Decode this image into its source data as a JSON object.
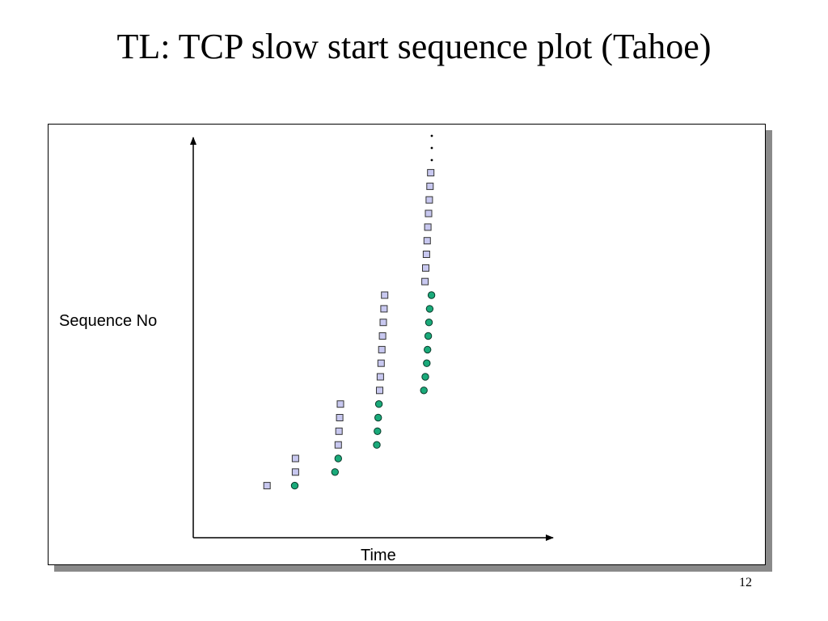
{
  "slide": {
    "title": "TL: TCP slow start sequence plot (Tahoe)",
    "page_number": "12"
  },
  "colors": {
    "segment_fill": "#c8c8f0",
    "segment_stroke": "#333333",
    "ack_fill": "#1aaa7a",
    "ack_stroke": "#0a3a2a",
    "axis": "#000000",
    "shadow": "#8a8a8a"
  },
  "chart_data": {
    "type": "scatter",
    "title": "",
    "xlabel": "Time",
    "ylabel": "Sequence No",
    "x_ticks": false,
    "y_ticks": false,
    "grid": false,
    "xlim": [
      0,
      100
    ],
    "ylim": [
      0,
      100
    ],
    "continuation_marker": "...",
    "series": [
      {
        "marker": "square",
        "points": [
          [
            20.5,
            13.0
          ],
          [
            28.4,
            16.4
          ],
          [
            28.4,
            19.8
          ],
          [
            40.3,
            23.2
          ],
          [
            40.5,
            26.6
          ],
          [
            40.7,
            30.0
          ],
          [
            40.9,
            33.4
          ],
          [
            51.8,
            36.8
          ],
          [
            52.0,
            40.2
          ],
          [
            52.2,
            43.6
          ],
          [
            52.4,
            47.0
          ],
          [
            52.6,
            50.4
          ],
          [
            52.8,
            53.8
          ],
          [
            53.0,
            57.2
          ],
          [
            53.2,
            60.6
          ],
          [
            64.4,
            64.0
          ],
          [
            64.6,
            67.4
          ],
          [
            64.8,
            70.8
          ],
          [
            65.0,
            74.2
          ],
          [
            65.2,
            77.6
          ],
          [
            65.4,
            81.0
          ],
          [
            65.6,
            84.4
          ],
          [
            65.8,
            87.8
          ],
          [
            66.0,
            91.2
          ]
        ]
      },
      {
        "marker": "circle",
        "points": [
          [
            28.2,
            13.0
          ],
          [
            39.4,
            16.4
          ],
          [
            40.3,
            19.8
          ],
          [
            51.0,
            23.2
          ],
          [
            51.2,
            26.6
          ],
          [
            51.4,
            30.0
          ],
          [
            51.6,
            33.4
          ],
          [
            64.1,
            36.8
          ],
          [
            64.5,
            40.2
          ],
          [
            64.9,
            43.6
          ],
          [
            65.1,
            47.0
          ],
          [
            65.3,
            50.4
          ],
          [
            65.5,
            53.8
          ],
          [
            65.7,
            57.2
          ],
          [
            66.2,
            60.6
          ]
        ]
      }
    ]
  }
}
